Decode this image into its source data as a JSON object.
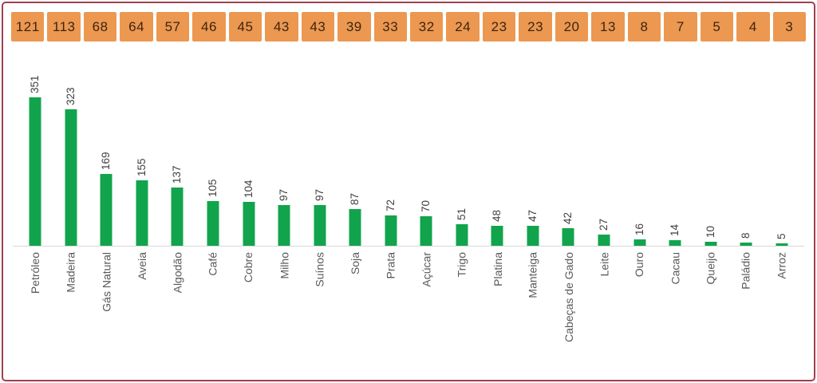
{
  "frame": {
    "border_color": "#9e4150",
    "background": "#ffffff",
    "axis_line_color": "#d9d9d9"
  },
  "header_row": {
    "cell_color": "#EC9851",
    "text_color": "#3d2410",
    "values": [
      121,
      113,
      68,
      64,
      57,
      46,
      45,
      43,
      43,
      39,
      33,
      32,
      24,
      23,
      23,
      20,
      13,
      8,
      7,
      5,
      4,
      3
    ]
  },
  "chart_data": {
    "type": "bar",
    "orientation": "vertical",
    "title": "",
    "xlabel": "",
    "ylabel": "",
    "categories": [
      "Petróleo",
      "Madeira",
      "Gás Natural",
      "Aveia",
      "Algodão",
      "Café",
      "Cobre",
      "Milho",
      "Suínos",
      "Soja",
      "Prata",
      "Açúcar",
      "Trigo",
      "Platina",
      "Manteiga",
      "Cabeças de Gado",
      "Leite",
      "Ouro",
      "Cacau",
      "Queijo",
      "Paládio",
      "Arroz"
    ],
    "values": [
      351,
      323,
      169,
      155,
      137,
      105,
      104,
      97,
      97,
      87,
      72,
      70,
      51,
      48,
      47,
      42,
      27,
      16,
      14,
      10,
      8,
      5
    ],
    "secondary_row_values": [
      121,
      113,
      68,
      64,
      57,
      46,
      45,
      43,
      43,
      39,
      33,
      32,
      24,
      23,
      23,
      20,
      13,
      8,
      7,
      5,
      4,
      3
    ],
    "ylim": [
      0,
      360
    ],
    "grid": false,
    "legend": false,
    "data_labels_rotation": -90,
    "category_labels_rotation": -90,
    "bar_color": "#12A44C",
    "value_label_color": "#404040",
    "category_label_color": "#595959"
  }
}
